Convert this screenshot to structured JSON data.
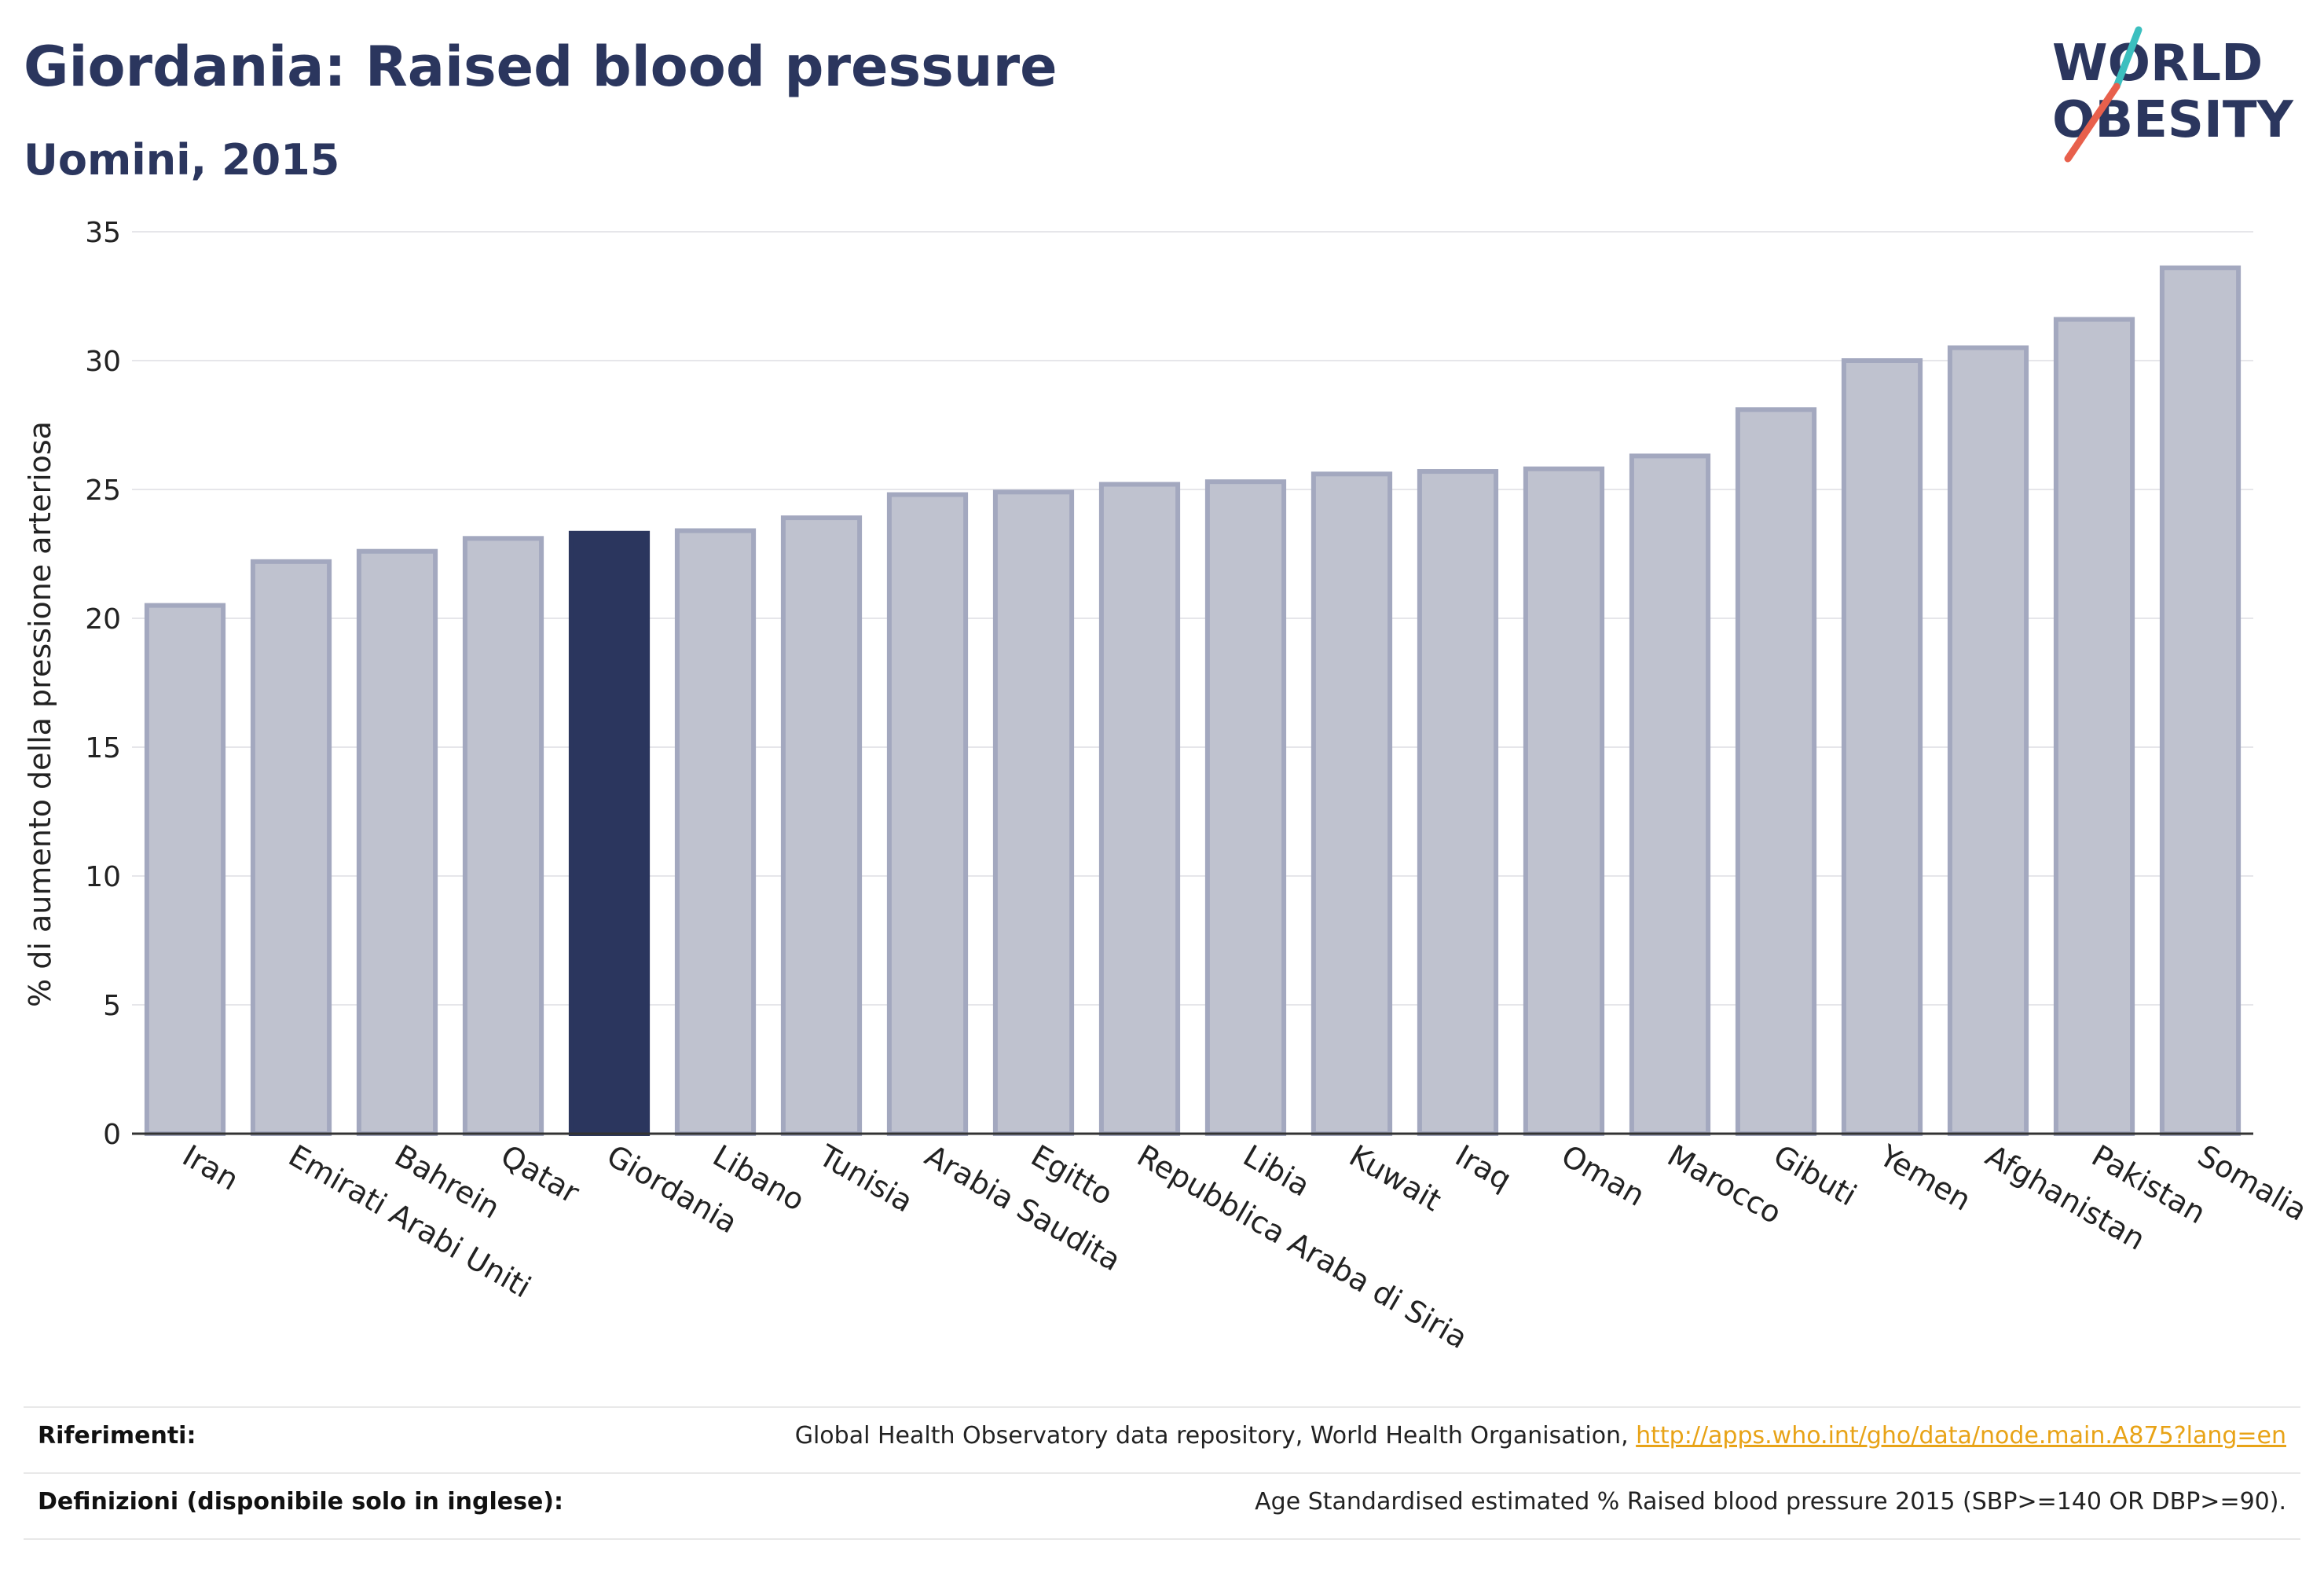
{
  "header": {
    "title": "Giordania: Raised blood pressure",
    "subtitle": "Uomini, 2015"
  },
  "logo": {
    "line1": "WORLD",
    "line2": "OBESITY",
    "accent_colors": [
      "#3cbfbf",
      "#e8604c"
    ]
  },
  "colors": {
    "highlight_bar": "#2b365e",
    "normal_bar_fill": "#bfc2cf",
    "normal_bar_stroke": "#a3a8bf",
    "title": "#2b365e",
    "link": "#e8a317"
  },
  "chart_data": {
    "type": "bar",
    "ylabel": "% di aumento della pressione arteriosa",
    "ylim": [
      0,
      35
    ],
    "yticks": [
      0,
      5,
      10,
      15,
      20,
      25,
      30,
      35
    ],
    "grid": true,
    "highlight": "Giordania",
    "categories": [
      "Iran",
      "Emirati Arabi Uniti",
      "Bahrein",
      "Qatar",
      "Giordania",
      "Libano",
      "Tunisia",
      "Arabia Saudita",
      "Egitto",
      "Repubblica Araba di Siria",
      "Libia",
      "Kuwait",
      "Iraq",
      "Oman",
      "Marocco",
      "Gibuti",
      "Yemen",
      "Afghanistan",
      "Pakistan",
      "Somalia"
    ],
    "values": [
      20.5,
      22.2,
      22.6,
      23.1,
      23.3,
      23.4,
      23.9,
      24.8,
      24.9,
      25.2,
      25.3,
      25.6,
      25.7,
      25.8,
      26.3,
      28.1,
      30.0,
      30.5,
      31.6,
      33.6
    ]
  },
  "references": {
    "riferimenti_label": "Riferimenti:",
    "riferimenti_text": "Global Health Observatory data repository, World Health Organisation, ",
    "riferimenti_link": "http://apps.who.int/gho/data/node.main.A875?lang=en",
    "definizioni_label": "Definizioni (disponibile solo in inglese):",
    "definizioni_text": "Age Standardised estimated % Raised blood pressure 2015 (SBP>=140 OR DBP>=90)."
  }
}
